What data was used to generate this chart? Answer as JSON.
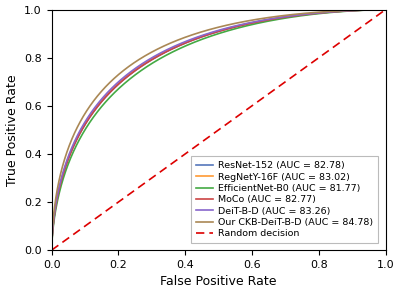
{
  "title": "",
  "xlabel": "False Positive Rate",
  "ylabel": "True Positive Rate",
  "xlim": [
    0.0,
    1.0
  ],
  "ylim": [
    0.0,
    1.0
  ],
  "curves": [
    {
      "label": "ResNet-152 (AUC = 82.78)",
      "color": "#5577bb",
      "beta": 3.8
    },
    {
      "label": "RegNetY-16F (AUC = 83.02)",
      "color": "#ff9933",
      "beta": 3.95
    },
    {
      "label": "EfficientNet-B0 (AUC = 81.77)",
      "color": "#44aa44",
      "beta": 3.45
    },
    {
      "label": "MoCo (AUC = 82.77)",
      "color": "#cc4444",
      "beta": 3.78
    },
    {
      "label": "DeiT-B-D (AUC = 83.26)",
      "color": "#8866cc",
      "beta": 4.1
    },
    {
      "label": "Our CKB-DeiT-B-D (AUC = 84.78)",
      "color": "#aa8855",
      "beta": 4.7
    }
  ],
  "random_label": "Random decision",
  "random_color": "#dd0000",
  "legend_fontsize": 6.8,
  "axis_fontsize": 9,
  "tick_fontsize": 8,
  "figsize": [
    4.0,
    2.94
  ],
  "dpi": 100
}
